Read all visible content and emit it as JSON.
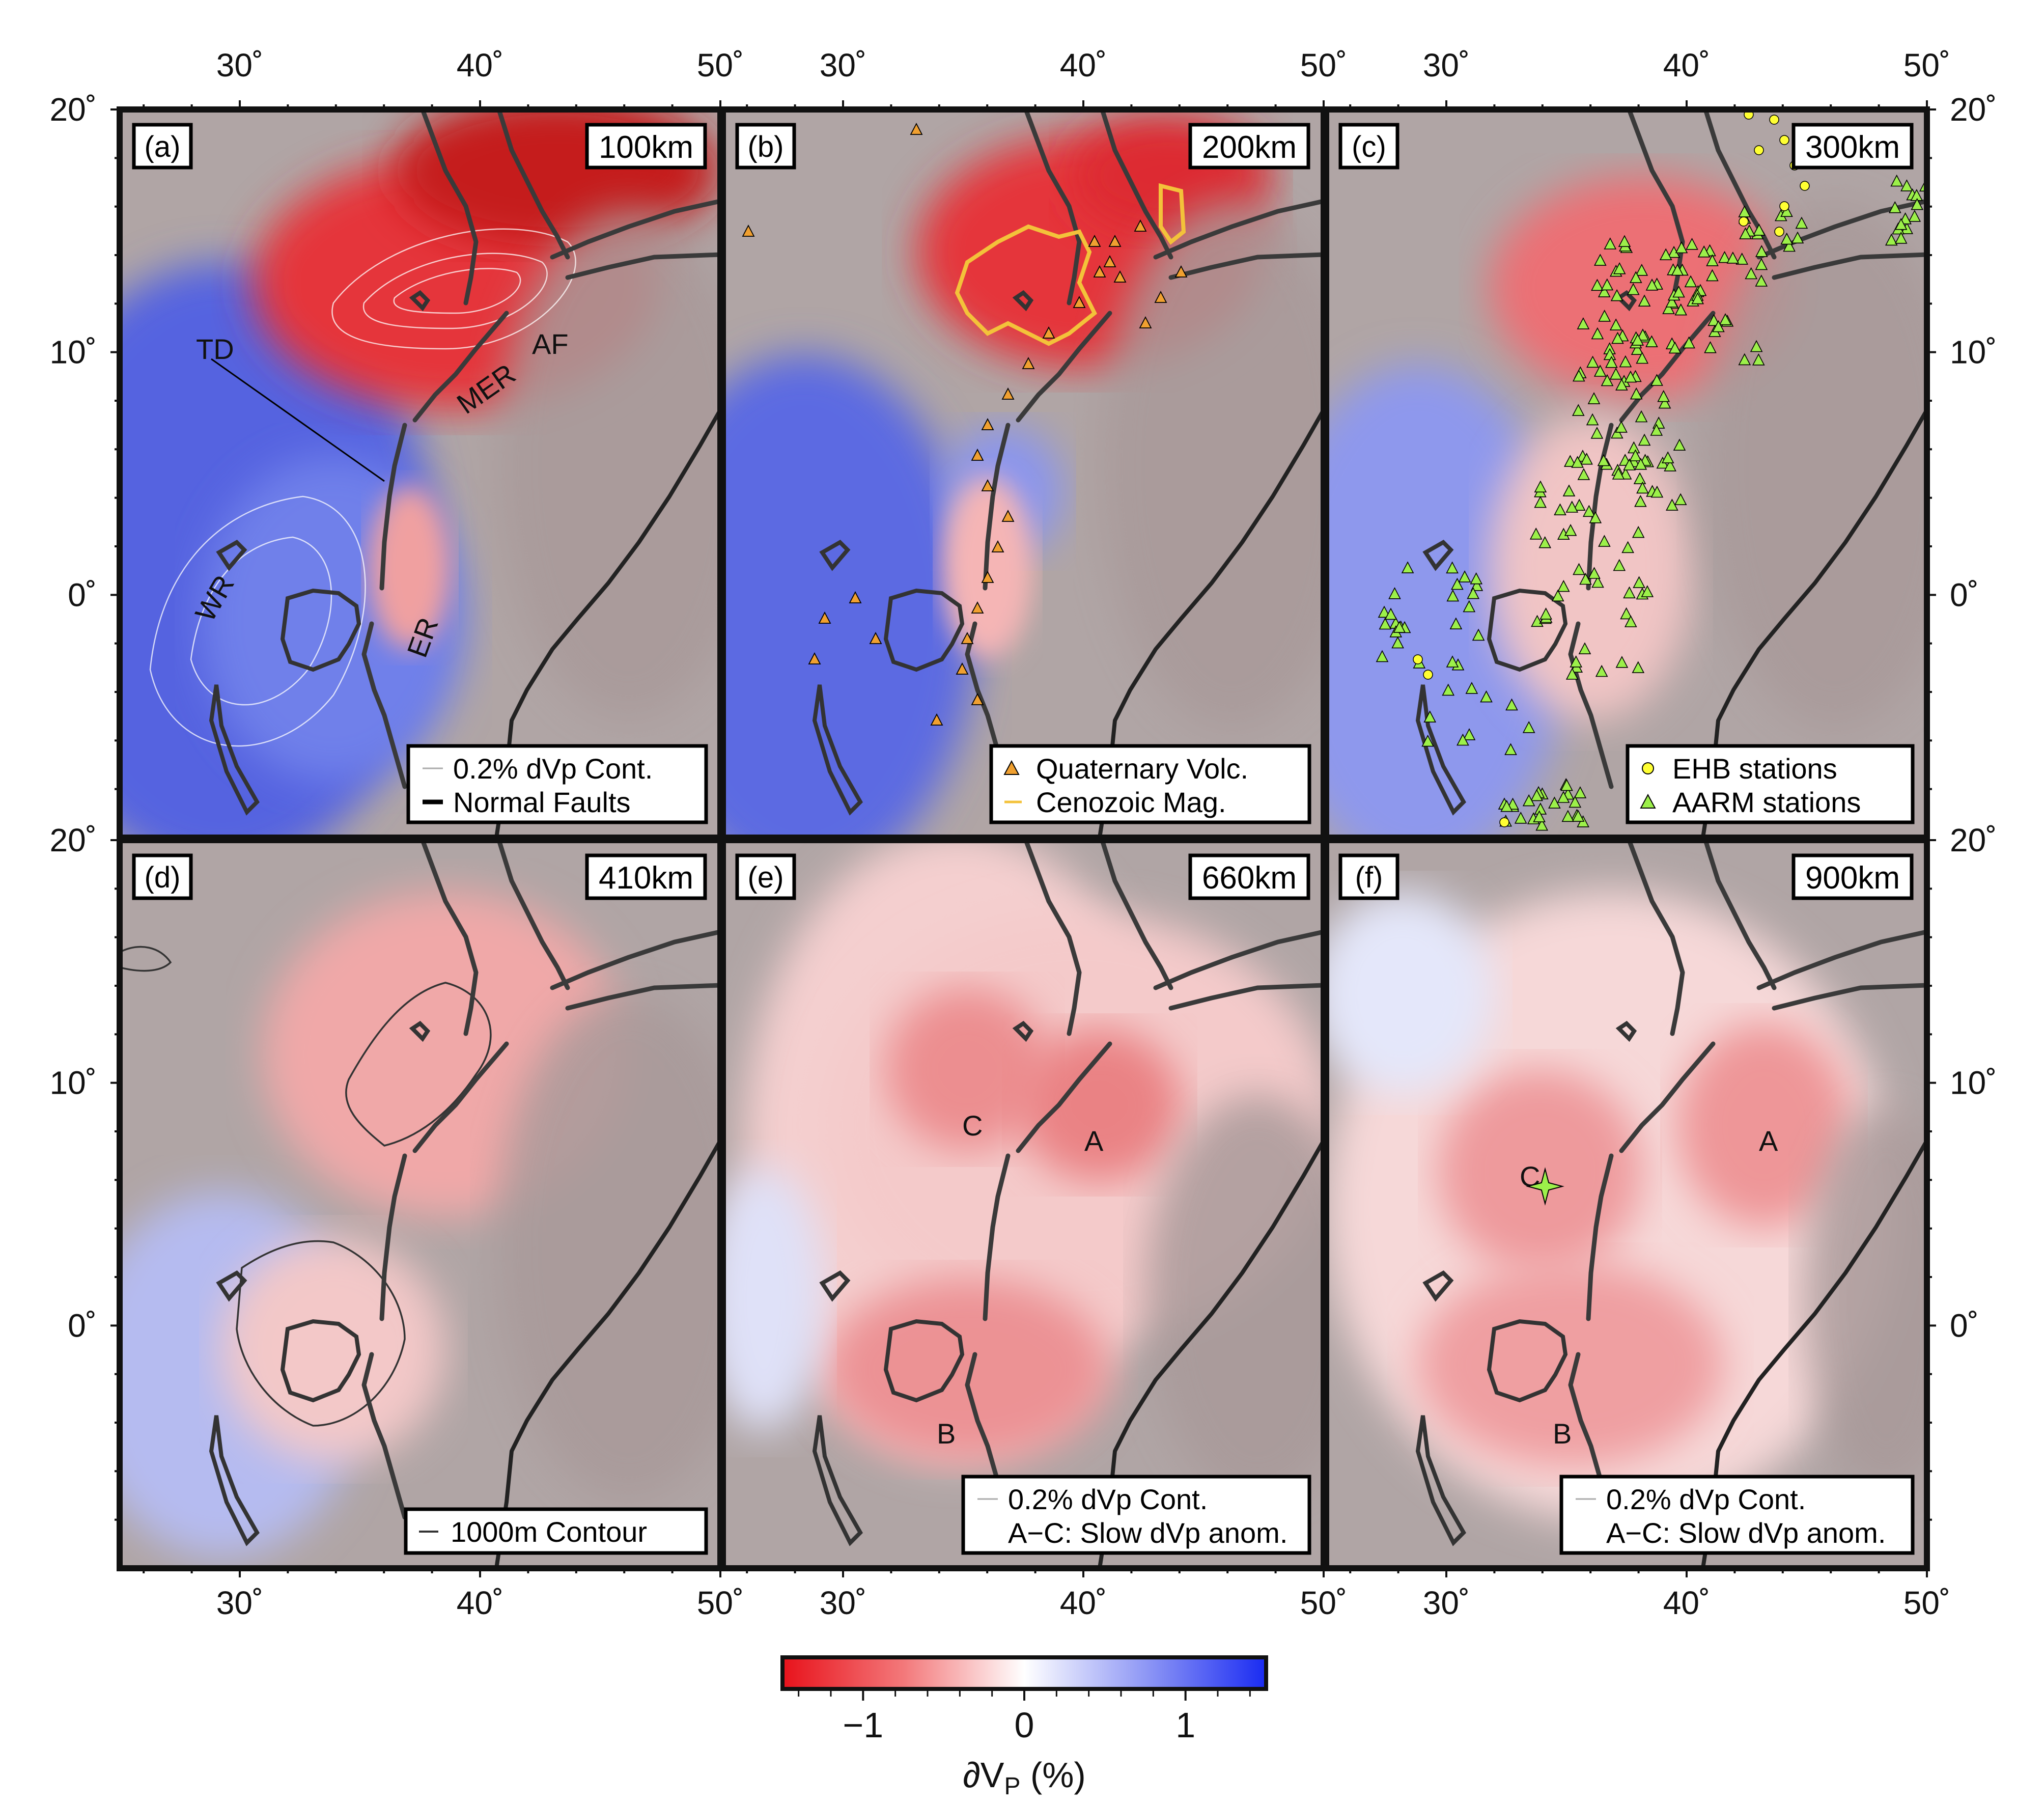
{
  "colors": {
    "slow": "#e8121b",
    "neutral": "#ffffff",
    "fast": "#1a2bf2",
    "mask": "#9f8f8f",
    "fault": "#3a3a3a",
    "volcano": "#f0a030",
    "magmatism": "#f3c23a",
    "ehb": "#ffff33",
    "aarm": "#9cf04a",
    "star": "#9cf04a"
  },
  "axes": {
    "lon_ticks": [
      "30˚",
      "40˚",
      "50˚"
    ],
    "lat_ticks": [
      "20˚",
      "10˚",
      "0˚"
    ],
    "lon_range": [
      25,
      50
    ],
    "lat_range": [
      -10,
      20
    ]
  },
  "panels": [
    {
      "id": "a",
      "label": "(a)",
      "depth": "100km",
      "legend": [
        "0.2% dVp Cont.",
        "Normal Faults"
      ],
      "annotations": [
        {
          "text": "TD"
        },
        {
          "text": "AF"
        },
        {
          "text": "MER"
        },
        {
          "text": "WR"
        },
        {
          "text": "ER"
        }
      ]
    },
    {
      "id": "b",
      "label": "(b)",
      "depth": "200km",
      "legend": [
        "Quaternary Volc.",
        "Cenozoic Mag."
      ],
      "annotations": []
    },
    {
      "id": "c",
      "label": "(c)",
      "depth": "300km",
      "legend": [
        "EHB stations",
        "AARM stations"
      ],
      "annotations": []
    },
    {
      "id": "d",
      "label": "(d)",
      "depth": "410km",
      "legend": [
        "1000m Contour"
      ],
      "annotations": []
    },
    {
      "id": "e",
      "label": "(e)",
      "depth": "660km",
      "legend": [
        "0.2% dVp Cont.",
        "A−C: Slow dVp anom."
      ],
      "annotations": [
        {
          "text": "A"
        },
        {
          "text": "B"
        },
        {
          "text": "C"
        }
      ]
    },
    {
      "id": "f",
      "label": "(f)",
      "depth": "900km",
      "legend": [
        "0.2% dVp Cont.",
        "A−C: Slow dVp anom."
      ],
      "annotations": [
        {
          "text": "A"
        },
        {
          "text": "B"
        },
        {
          "text": "C"
        }
      ]
    }
  ],
  "colorbar": {
    "title": "∂V",
    "title_sub": "P",
    "title_suffix": " (%)",
    "range": [
      -1.5,
      1.5
    ],
    "tick_labels": [
      "−1",
      "0",
      "1"
    ]
  }
}
